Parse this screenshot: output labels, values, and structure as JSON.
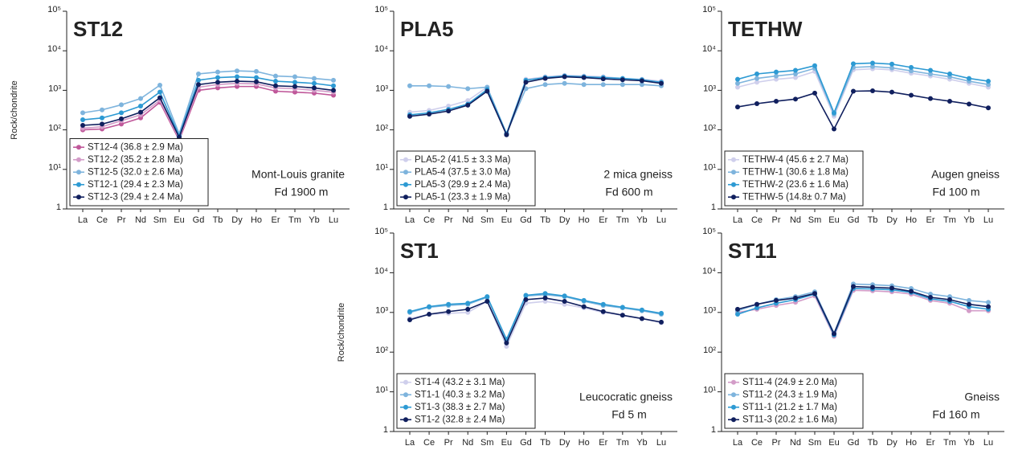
{
  "chart_data": [
    {
      "type": "line",
      "title": "ST12",
      "ylabel": "Rock/chondrite",
      "log_scale": true,
      "legend": "lower left",
      "annotations": [
        "Mont-Louis granite",
        "Fd 1900 m"
      ],
      "categories": [
        "La",
        "Ce",
        "Pr",
        "Nd",
        "Sm",
        "Eu",
        "Gd",
        "Tb",
        "Dy",
        "Ho",
        "Er",
        "Tm",
        "Yb",
        "Lu"
      ],
      "ylim": [
        1,
        100000
      ],
      "yticks": [
        1,
        {
          "value": 10,
          "label": "10¹"
        },
        {
          "value": 100,
          "label": "10²"
        },
        {
          "value": 1000,
          "label": "10³"
        },
        {
          "value": 10000,
          "label": "10⁴"
        },
        {
          "value": 100000,
          "label": "10⁵"
        }
      ],
      "series": [
        {
          "name": "ST12-4 (36.8 ± 2.9 Ma)",
          "color": "#c0589a",
          "values": [
            100,
            105,
            140,
            200,
            500,
            55,
            1000,
            1150,
            1250,
            1250,
            950,
            900,
            850,
            750
          ]
        },
        {
          "name": "ST12-2 (35.2 ± 2.8 Ma)",
          "color": "#d39cc8",
          "values": [
            110,
            120,
            170,
            240,
            560,
            60,
            1200,
            1400,
            1500,
            1450,
            1150,
            1100,
            1000,
            900
          ]
        },
        {
          "name": "ST12-5 (32.0 ± 2.6 Ma)",
          "color": "#7eb4dd",
          "values": [
            270,
            320,
            430,
            620,
            1350,
            80,
            2600,
            2900,
            3100,
            3000,
            2300,
            2200,
            2000,
            1800
          ]
        },
        {
          "name": "ST12-1 (29.4 ± 2.3 Ma)",
          "color": "#2d9ad3",
          "values": [
            180,
            200,
            270,
            400,
            900,
            70,
            1800,
            2100,
            2200,
            2100,
            1700,
            1600,
            1500,
            1300
          ]
        },
        {
          "name": "ST12-3 (29.4 ± 2.4 Ma)",
          "color": "#101f5e",
          "values": [
            130,
            140,
            190,
            280,
            650,
            65,
            1400,
            1600,
            1700,
            1650,
            1300,
            1250,
            1150,
            1000
          ]
        }
      ]
    },
    {
      "type": "line",
      "title": "PLA5",
      "log_scale": true,
      "legend": "lower left",
      "annotations": [
        "2 mica gneiss",
        "Fd 600 m"
      ],
      "categories": [
        "La",
        "Ce",
        "Pr",
        "Nd",
        "Sm",
        "Eu",
        "Gd",
        "Tb",
        "Dy",
        "Ho",
        "Er",
        "Tm",
        "Yb",
        "Lu"
      ],
      "ylim": [
        1,
        100000
      ],
      "yticks": [
        1,
        {
          "value": 10,
          "label": "10¹"
        },
        {
          "value": 100,
          "label": "10²"
        },
        {
          "value": 1000,
          "label": "10³"
        },
        {
          "value": 10000,
          "label": "10⁴"
        },
        {
          "value": 100000,
          "label": "10⁵"
        }
      ],
      "series": [
        {
          "name": "PLA5-2 (41.5 ± 3.3 Ma)",
          "color": "#cfcfec",
          "values": [
            280,
            310,
            400,
            550,
            1200,
            80,
            1900,
            2200,
            2400,
            2300,
            2200,
            2000,
            1900,
            1700
          ]
        },
        {
          "name": "PLA5-4 (37.5 ± 3.0 Ma)",
          "color": "#7eb4dd",
          "values": [
            1300,
            1300,
            1250,
            1100,
            1200,
            80,
            1100,
            1400,
            1500,
            1400,
            1400,
            1400,
            1400,
            1300
          ]
        },
        {
          "name": "PLA5-3 (29.9 ± 2.4 Ma)",
          "color": "#2d9ad3",
          "values": [
            240,
            270,
            330,
            450,
            1050,
            80,
            1800,
            2100,
            2300,
            2200,
            2100,
            2000,
            1850,
            1600
          ]
        },
        {
          "name": "PLA5-1 (23.3 ± 1.9 Ma)",
          "color": "#101f5e",
          "values": [
            220,
            250,
            300,
            420,
            950,
            75,
            1600,
            2000,
            2200,
            2100,
            1950,
            1850,
            1750,
            1500
          ]
        }
      ]
    },
    {
      "type": "line",
      "title": "TETHW",
      "log_scale": true,
      "legend": "lower left",
      "annotations": [
        "Augen gneiss",
        "Fd 100 m"
      ],
      "categories": [
        "La",
        "Ce",
        "Pr",
        "Nd",
        "Sm",
        "Eu",
        "Gd",
        "Tb",
        "Dy",
        "Ho",
        "Er",
        "Tm",
        "Yb",
        "Lu"
      ],
      "ylim": [
        1,
        100000
      ],
      "yticks": [
        1,
        {
          "value": 10,
          "label": "10¹"
        },
        {
          "value": 100,
          "label": "10²"
        },
        {
          "value": 1000,
          "label": "10³"
        },
        {
          "value": 10000,
          "label": "10⁴"
        },
        {
          "value": 100000,
          "label": "10⁵"
        }
      ],
      "series": [
        {
          "name": "TETHW-4 (45.6 ± 2.7 Ma)",
          "color": "#cfcfec",
          "values": [
            1200,
            1600,
            1900,
            2100,
            3000,
            220,
            3300,
            3500,
            3300,
            2700,
            2300,
            1900,
            1500,
            1200
          ]
        },
        {
          "name": "TETHW-1 (30.6 ± 1.8 Ma)",
          "color": "#7eb4dd",
          "values": [
            1500,
            2000,
            2300,
            2600,
            3600,
            250,
            3800,
            4000,
            3700,
            3100,
            2600,
            2200,
            1700,
            1400
          ]
        },
        {
          "name": "TETHW-2 (23.6 ± 1.6 Ma)",
          "color": "#2d9ad3",
          "values": [
            1900,
            2600,
            2900,
            3200,
            4200,
            270,
            4700,
            4900,
            4600,
            3800,
            3200,
            2600,
            2000,
            1700
          ]
        },
        {
          "name": "TETHW-5 (14.8± 0.7 Ma)",
          "color": "#101f5e",
          "values": [
            380,
            460,
            530,
            600,
            850,
            105,
            950,
            970,
            900,
            750,
            620,
            530,
            450,
            360
          ]
        }
      ]
    },
    {
      "type": "line",
      "title": "ST1",
      "ylabel": "Rock/chondrite",
      "log_scale": true,
      "legend": "lower left",
      "annotations": [
        "Leucocratic gneiss",
        "Fd 5 m"
      ],
      "categories": [
        "La",
        "Ce",
        "Pr",
        "Nd",
        "Sm",
        "Eu",
        "Gd",
        "Tb",
        "Dy",
        "Ho",
        "Er",
        "Tm",
        "Yb",
        "Lu"
      ],
      "ylim": [
        1,
        100000
      ],
      "yticks": [
        1,
        {
          "value": 10,
          "label": "10¹"
        },
        {
          "value": 100,
          "label": "10²"
        },
        {
          "value": 1000,
          "label": "10³"
        },
        {
          "value": 10000,
          "label": "10⁴"
        },
        {
          "value": 100000,
          "label": "10⁵"
        }
      ],
      "series": [
        {
          "name": "ST1-4 (43.2 ± 3.1 Ma)",
          "color": "#cfcfec",
          "values": [
            700,
            900,
            950,
            1000,
            1900,
            140,
            1700,
            1900,
            1600,
            1300,
            1000,
            850,
            700,
            550
          ]
        },
        {
          "name": "ST1-1 (40.3 ± 3.2 Ma)",
          "color": "#7eb4dd",
          "values": [
            1000,
            1350,
            1500,
            1600,
            2400,
            200,
            2600,
            2800,
            2500,
            1900,
            1500,
            1300,
            1100,
            900
          ]
        },
        {
          "name": "ST1-3 (38.3 ± 2.7 Ma)",
          "color": "#2d9ad3",
          "values": [
            1050,
            1400,
            1600,
            1700,
            2500,
            210,
            2700,
            3000,
            2600,
            2000,
            1600,
            1350,
            1150,
            950
          ]
        },
        {
          "name": "ST1-2 (32.8 ± 2.4 Ma)",
          "color": "#101f5e",
          "values": [
            650,
            900,
            1050,
            1200,
            1900,
            170,
            2100,
            2300,
            1900,
            1400,
            1050,
            850,
            700,
            570
          ]
        }
      ]
    },
    {
      "type": "line",
      "title": "ST11",
      "log_scale": true,
      "legend": "lower left",
      "annotations": [
        "Gneiss",
        "Fd 160 m"
      ],
      "categories": [
        "La",
        "Ce",
        "Pr",
        "Nd",
        "Sm",
        "Eu",
        "Gd",
        "Tb",
        "Dy",
        "Ho",
        "Er",
        "Tm",
        "Yb",
        "Lu"
      ],
      "ylim": [
        1,
        100000
      ],
      "yticks": [
        1,
        {
          "value": 10,
          "label": "10¹"
        },
        {
          "value": 100,
          "label": "10²"
        },
        {
          "value": 1000,
          "label": "10³"
        },
        {
          "value": 10000,
          "label": "10⁴"
        },
        {
          "value": 100000,
          "label": "10⁵"
        }
      ],
      "series": [
        {
          "name": "ST11-4 (24.9 ± 2.0 Ma)",
          "color": "#d39cc8",
          "values": [
            1000,
            1200,
            1500,
            1800,
            2600,
            250,
            3600,
            3500,
            3300,
            2900,
            2000,
            1700,
            1100,
            1100
          ]
        },
        {
          "name": "ST11-2 (24.3 ± 1.9 Ma)",
          "color": "#7eb4dd",
          "values": [
            1100,
            1600,
            2100,
            2500,
            3300,
            300,
            5200,
            5000,
            4700,
            4000,
            2900,
            2500,
            2000,
            1800
          ]
        },
        {
          "name": "ST11-1 (21.2 ± 1.7 Ma)",
          "color": "#2d9ad3",
          "values": [
            900,
            1300,
            1700,
            2100,
            2900,
            270,
            4000,
            3900,
            3700,
            3200,
            2200,
            1900,
            1400,
            1200
          ]
        },
        {
          "name": "ST11-3 (20.2 ± 1.6 Ma)",
          "color": "#101f5e",
          "values": [
            1200,
            1600,
            2000,
            2300,
            3000,
            290,
            4500,
            4300,
            4100,
            3400,
            2400,
            2100,
            1600,
            1400
          ]
        }
      ]
    }
  ]
}
